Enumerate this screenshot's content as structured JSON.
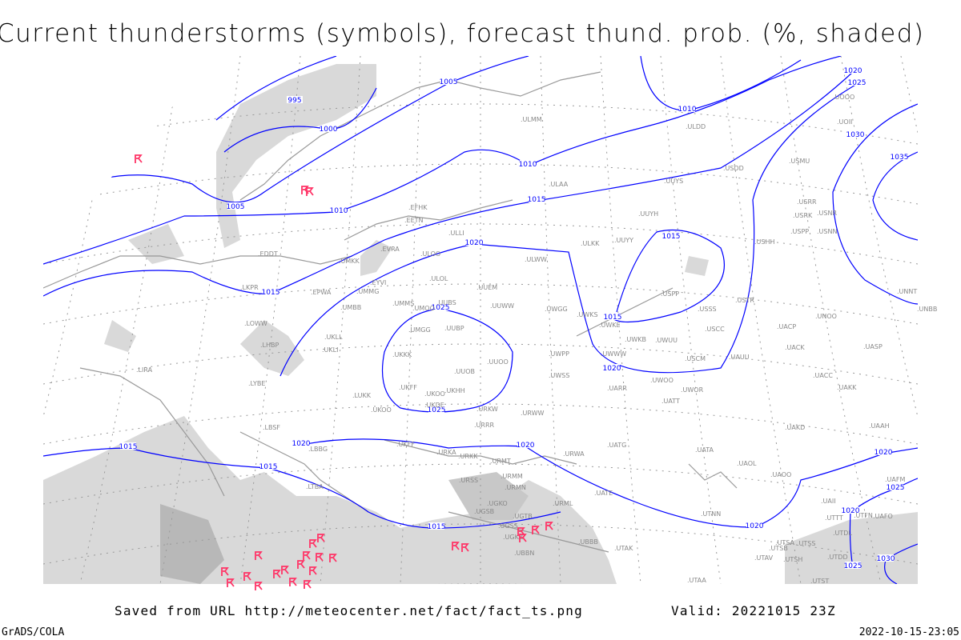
{
  "title": "Current thunderstorms (symbols), forecast thund. prob. (%, shaded)",
  "footer": {
    "saved_from": "Saved from URL http://meteocenter.net/fact/fact_ts.png",
    "valid": "Valid: 20221015 23Z",
    "software": "GrADS/COLA",
    "timestamp": "2022-10-15-23:05"
  },
  "colors": {
    "isobar": "#0000ff",
    "thunderstorm_symbol": "#ff3366",
    "probability_shading": "#d9d9d9",
    "coastline": "#999999"
  },
  "symbol_icon": "thunderstorm-icon",
  "isobar_labels": [
    "995",
    "1000",
    "1005",
    "1005",
    "1010",
    "1010",
    "1010",
    "1015",
    "1015",
    "1015",
    "1015",
    "1015",
    "1015",
    "1015",
    "1020",
    "1020",
    "1020",
    "1020",
    "1020",
    "1020",
    "1020",
    "1020",
    "1025",
    "1025",
    "1025",
    "1025",
    "1025",
    "1030",
    "1030",
    "1035"
  ],
  "stations": [
    "EFHK",
    "EETN",
    "ULLI",
    "EVRA",
    "ULOO",
    "UMKK",
    "EDDT",
    "EPWA",
    "LKPR",
    "UMMG",
    "UMMS",
    "UMOO",
    "UUBS",
    "EYVI",
    "ULOL",
    "UUEM",
    "UUWW",
    "UWGG",
    "UWKS",
    "ULKK",
    "UUYY",
    "ULWW",
    "UMBB",
    "UMGG",
    "UUBP",
    "UKKK",
    "UUOO",
    "UUOB",
    "UKHH",
    "UKOO",
    "UKFF",
    "UKDE",
    "URKW",
    "LOWW",
    "LHBP",
    "UKLL",
    "UKLI",
    "LIRA",
    "LYBE",
    "LUKK",
    "UKOO",
    "LBSF",
    "LBBG",
    "UKFF",
    "URKA",
    "URKK",
    "URRR",
    "UWPP",
    "UWKE",
    "UWKB",
    "UWUU",
    "UWWW",
    "UWSS",
    "URWW",
    "UARR",
    "UATT",
    "UWOO",
    "UWOR",
    "UUYH",
    "UUYS",
    "ULAA",
    "ULDD",
    "ULMM",
    "USDD",
    "USHH",
    "USSS",
    "USCC",
    "USCM",
    "UAUU",
    "USPP",
    "USTR",
    "UACP",
    "UACK",
    "UNOO",
    "UASP",
    "UACC",
    "UAKK",
    "UAKD",
    "UAAH",
    "UATA",
    "UAOL",
    "UAOO",
    "UATG",
    "URWA",
    "URMT",
    "URMM",
    "URMN",
    "URSS",
    "UATE",
    "UGKO",
    "UGSB",
    "UGTB",
    "URML",
    "UGSS",
    "UBBB",
    "UTAK",
    "UBBN",
    "UGKZ",
    "UTNN",
    "UTSA",
    "UTSB",
    "UTSS",
    "UTAV",
    "UTSH",
    "UTAA",
    "UTST",
    "UTDD",
    "UTDL",
    "UTTT",
    "UAII",
    "UTFN",
    "UAFO",
    "UAFM",
    "USRR",
    "USRK",
    "USNR",
    "USPP",
    "USNN",
    "USMU",
    "UOOO",
    "UOII",
    "UNBB",
    "UNNT",
    "LTBA"
  ]
}
